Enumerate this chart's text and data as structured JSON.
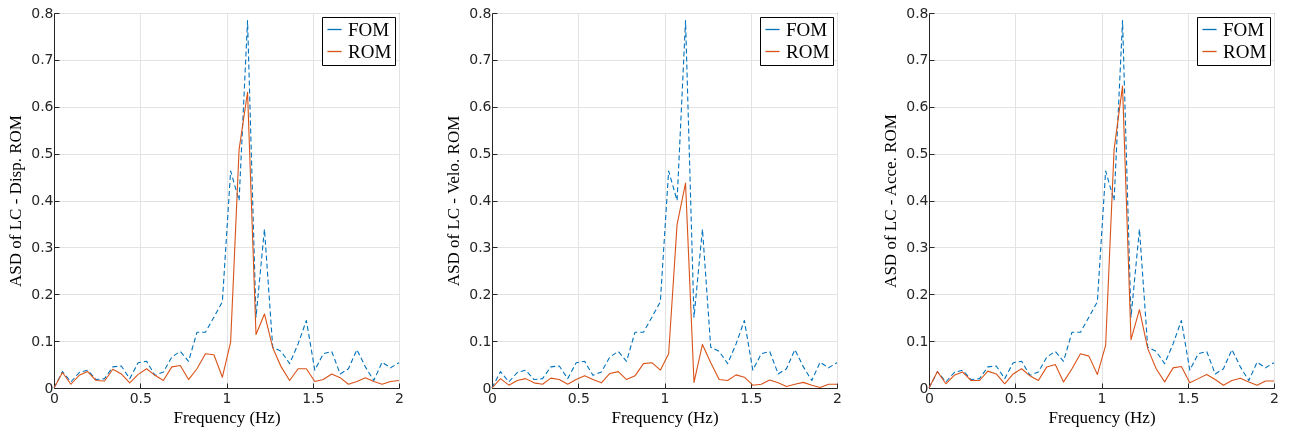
{
  "chart_data": [
    {
      "type": "line",
      "xlabel": "Frequency (Hz)",
      "ylabel": "ASD of LC - Disp. ROM",
      "x": [
        0,
        0.049,
        0.098,
        0.146,
        0.195,
        0.244,
        0.293,
        0.341,
        0.39,
        0.439,
        0.488,
        0.537,
        0.585,
        0.634,
        0.683,
        0.732,
        0.78,
        0.829,
        0.878,
        0.927,
        0.976,
        1.024,
        1.073,
        1.122,
        1.171,
        1.22,
        1.268,
        1.317,
        1.366,
        1.415,
        1.463,
        1.512,
        1.561,
        1.61,
        1.659,
        1.707,
        1.756,
        1.805,
        1.854,
        1.902,
        1.951,
        2.0
      ],
      "xlim": [
        0,
        2
      ],
      "ylim": [
        0,
        0.8
      ],
      "xticks": [
        0,
        0.5,
        1,
        1.5,
        2
      ],
      "yticks": [
        0,
        0.1,
        0.2,
        0.3,
        0.4,
        0.5,
        0.6,
        0.7,
        0.8
      ],
      "grid": true,
      "legend": "top right",
      "series": [
        {
          "name": "FOM",
          "color": "#0072bd",
          "line_style": "dashed",
          "values": [
            0,
            0.035,
            0.013,
            0.033,
            0.038,
            0.018,
            0.02,
            0.045,
            0.047,
            0.02,
            0.054,
            0.057,
            0.027,
            0.034,
            0.066,
            0.078,
            0.057,
            0.119,
            0.119,
            0.151,
            0.184,
            0.463,
            0.4,
            0.784,
            0.151,
            0.339,
            0.087,
            0.078,
            0.052,
            0.094,
            0.144,
            0.038,
            0.073,
            0.078,
            0.03,
            0.041,
            0.082,
            0.045,
            0.016,
            0.055,
            0.043,
            0.054
          ]
        },
        {
          "name": "ROM",
          "color": "#d95319",
          "line_style": "solid",
          "values": [
            0,
            0.033,
            0.008,
            0.027,
            0.035,
            0.016,
            0.015,
            0.04,
            0.03,
            0.011,
            0.029,
            0.041,
            0.027,
            0.016,
            0.045,
            0.048,
            0.018,
            0.041,
            0.073,
            0.071,
            0.023,
            0.098,
            0.509,
            0.631,
            0.114,
            0.158,
            0.086,
            0.045,
            0.016,
            0.041,
            0.041,
            0.014,
            0.018,
            0.03,
            0.022,
            0.008,
            0.014,
            0.022,
            0.014,
            0.008,
            0.014,
            0.016
          ]
        }
      ]
    },
    {
      "type": "line",
      "xlabel": "Frequency (Hz)",
      "ylabel": "ASD of LC - Velo. ROM",
      "x": [
        0,
        0.049,
        0.098,
        0.146,
        0.195,
        0.244,
        0.293,
        0.341,
        0.39,
        0.439,
        0.488,
        0.537,
        0.585,
        0.634,
        0.683,
        0.732,
        0.78,
        0.829,
        0.878,
        0.927,
        0.976,
        1.024,
        1.073,
        1.122,
        1.171,
        1.22,
        1.268,
        1.317,
        1.366,
        1.415,
        1.463,
        1.512,
        1.561,
        1.61,
        1.659,
        1.707,
        1.756,
        1.805,
        1.854,
        1.902,
        1.951,
        2.0
      ],
      "xlim": [
        0,
        2
      ],
      "ylim": [
        0,
        0.8
      ],
      "xticks": [
        0,
        0.5,
        1,
        1.5,
        2
      ],
      "yticks": [
        0,
        0.1,
        0.2,
        0.3,
        0.4,
        0.5,
        0.6,
        0.7,
        0.8
      ],
      "grid": true,
      "legend": "top right",
      "series": [
        {
          "name": "FOM",
          "color": "#0072bd",
          "line_style": "dashed",
          "values": [
            0,
            0.035,
            0.013,
            0.033,
            0.038,
            0.018,
            0.02,
            0.045,
            0.047,
            0.02,
            0.054,
            0.057,
            0.027,
            0.034,
            0.066,
            0.078,
            0.057,
            0.119,
            0.119,
            0.151,
            0.184,
            0.463,
            0.4,
            0.784,
            0.151,
            0.339,
            0.087,
            0.078,
            0.052,
            0.094,
            0.144,
            0.038,
            0.073,
            0.078,
            0.03,
            0.041,
            0.082,
            0.045,
            0.016,
            0.055,
            0.043,
            0.054
          ]
        },
        {
          "name": "ROM",
          "color": "#d95319",
          "line_style": "solid",
          "values": [
            0,
            0.02,
            0.006,
            0.016,
            0.02,
            0.011,
            0.008,
            0.021,
            0.018,
            0.008,
            0.018,
            0.026,
            0.018,
            0.011,
            0.031,
            0.035,
            0.018,
            0.026,
            0.052,
            0.054,
            0.038,
            0.073,
            0.349,
            0.437,
            0.012,
            0.093,
            0.054,
            0.018,
            0.016,
            0.028,
            0.023,
            0.006,
            0.008,
            0.017,
            0.011,
            0.003,
            0.008,
            0.012,
            0.006,
            0.001,
            0.008,
            0.008
          ]
        }
      ]
    },
    {
      "type": "line",
      "xlabel": "Frequency (Hz)",
      "ylabel": "ASD of LC - Acce. ROM",
      "x": [
        0,
        0.049,
        0.098,
        0.146,
        0.195,
        0.244,
        0.293,
        0.341,
        0.39,
        0.439,
        0.488,
        0.537,
        0.585,
        0.634,
        0.683,
        0.732,
        0.78,
        0.829,
        0.878,
        0.927,
        0.976,
        1.024,
        1.073,
        1.122,
        1.171,
        1.22,
        1.268,
        1.317,
        1.366,
        1.415,
        1.463,
        1.512,
        1.561,
        1.61,
        1.659,
        1.707,
        1.756,
        1.805,
        1.854,
        1.902,
        1.951,
        2.0
      ],
      "xlim": [
        0,
        2
      ],
      "ylim": [
        0,
        0.8
      ],
      "xticks": [
        0,
        0.5,
        1,
        1.5,
        2
      ],
      "yticks": [
        0,
        0.1,
        0.2,
        0.3,
        0.4,
        0.5,
        0.6,
        0.7,
        0.8
      ],
      "grid": true,
      "legend": "top right",
      "series": [
        {
          "name": "FOM",
          "color": "#0072bd",
          "line_style": "dashed",
          "values": [
            0,
            0.035,
            0.013,
            0.033,
            0.038,
            0.018,
            0.02,
            0.045,
            0.047,
            0.02,
            0.054,
            0.057,
            0.027,
            0.034,
            0.066,
            0.078,
            0.057,
            0.119,
            0.119,
            0.151,
            0.184,
            0.463,
            0.4,
            0.784,
            0.151,
            0.339,
            0.087,
            0.078,
            0.052,
            0.094,
            0.144,
            0.038,
            0.073,
            0.078,
            0.03,
            0.041,
            0.082,
            0.045,
            0.016,
            0.055,
            0.043,
            0.054
          ]
        },
        {
          "name": "ROM",
          "color": "#d95319",
          "line_style": "solid",
          "values": [
            0,
            0.035,
            0.009,
            0.027,
            0.034,
            0.016,
            0.016,
            0.036,
            0.03,
            0.009,
            0.03,
            0.041,
            0.026,
            0.016,
            0.045,
            0.05,
            0.013,
            0.041,
            0.073,
            0.068,
            0.029,
            0.091,
            0.509,
            0.644,
            0.103,
            0.167,
            0.084,
            0.041,
            0.013,
            0.043,
            0.046,
            0.011,
            0.02,
            0.029,
            0.018,
            0.006,
            0.016,
            0.021,
            0.013,
            0.006,
            0.015,
            0.015
          ]
        }
      ]
    }
  ]
}
